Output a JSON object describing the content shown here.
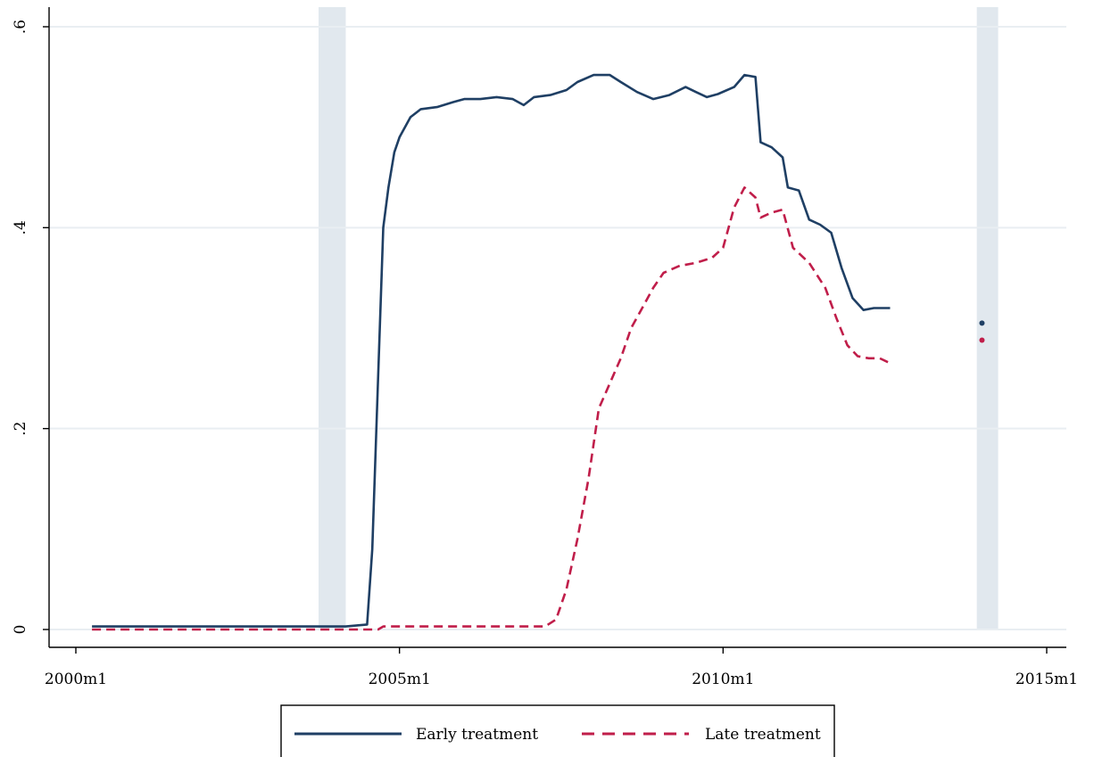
{
  "chart_data": {
    "type": "line",
    "title": "",
    "xlabel": "",
    "ylabel": "",
    "xlim": [
      2000.0,
      2015.0
    ],
    "ylim": [
      0,
      0.6
    ],
    "x_ticks": [
      {
        "value": 2000.0,
        "label": "2000m1"
      },
      {
        "value": 2005.0,
        "label": "2005m1"
      },
      {
        "value": 2010.0,
        "label": "2010m1"
      },
      {
        "value": 2015.0,
        "label": "2015m1"
      }
    ],
    "y_ticks": [
      {
        "value": 0,
        "label": "0"
      },
      {
        "value": 0.2,
        "label": ".2"
      },
      {
        "value": 0.4,
        "label": ".4"
      },
      {
        "value": 0.6,
        "label": ".6"
      }
    ],
    "grid": "horizontal",
    "legend_position": "bottom",
    "shaded_periods": [
      [
        2003.75,
        2004.17
      ],
      [
        2013.92,
        2014.25
      ]
    ],
    "series": [
      {
        "name": "Early treatment",
        "color": "#1f3f64",
        "style": "solid",
        "points": [
          [
            2000.25,
            0.003
          ],
          [
            2003.75,
            0.003
          ],
          [
            2004.17,
            0.003
          ],
          [
            2004.5,
            0.005
          ],
          [
            2004.58,
            0.08
          ],
          [
            2004.67,
            0.25
          ],
          [
            2004.75,
            0.4
          ],
          [
            2004.83,
            0.44
          ],
          [
            2004.92,
            0.475
          ],
          [
            2005.0,
            0.49
          ],
          [
            2005.17,
            0.51
          ],
          [
            2005.33,
            0.518
          ],
          [
            2005.58,
            0.52
          ],
          [
            2005.83,
            0.525
          ],
          [
            2006.0,
            0.528
          ],
          [
            2006.25,
            0.528
          ],
          [
            2006.5,
            0.53
          ],
          [
            2006.75,
            0.528
          ],
          [
            2006.92,
            0.522
          ],
          [
            2007.08,
            0.53
          ],
          [
            2007.33,
            0.532
          ],
          [
            2007.58,
            0.537
          ],
          [
            2007.75,
            0.545
          ],
          [
            2008.0,
            0.552
          ],
          [
            2008.25,
            0.552
          ],
          [
            2008.42,
            0.545
          ],
          [
            2008.67,
            0.535
          ],
          [
            2008.92,
            0.528
          ],
          [
            2009.17,
            0.532
          ],
          [
            2009.42,
            0.54
          ],
          [
            2009.58,
            0.535
          ],
          [
            2009.75,
            0.53
          ],
          [
            2009.92,
            0.533
          ],
          [
            2010.17,
            0.54
          ],
          [
            2010.33,
            0.552
          ],
          [
            2010.5,
            0.55
          ],
          [
            2010.58,
            0.485
          ],
          [
            2010.75,
            0.48
          ],
          [
            2010.92,
            0.47
          ],
          [
            2011.0,
            0.44
          ],
          [
            2011.17,
            0.437
          ],
          [
            2011.33,
            0.408
          ],
          [
            2011.5,
            0.403
          ],
          [
            2011.67,
            0.395
          ],
          [
            2011.83,
            0.36
          ],
          [
            2012.0,
            0.33
          ],
          [
            2012.17,
            0.318
          ],
          [
            2012.33,
            0.32
          ],
          [
            2012.58,
            0.32
          ]
        ],
        "point_marker": [
          2014.0,
          0.305
        ]
      },
      {
        "name": "Late treatment",
        "color": "#c01e4a",
        "style": "dashed",
        "points": [
          [
            2000.25,
            0.0
          ],
          [
            2004.17,
            0.0
          ],
          [
            2004.67,
            0.0
          ],
          [
            2004.75,
            0.003
          ],
          [
            2007.25,
            0.003
          ],
          [
            2007.42,
            0.01
          ],
          [
            2007.58,
            0.04
          ],
          [
            2007.75,
            0.09
          ],
          [
            2007.92,
            0.15
          ],
          [
            2008.08,
            0.22
          ],
          [
            2008.25,
            0.245
          ],
          [
            2008.42,
            0.27
          ],
          [
            2008.58,
            0.3
          ],
          [
            2008.75,
            0.32
          ],
          [
            2008.92,
            0.34
          ],
          [
            2009.08,
            0.355
          ],
          [
            2009.33,
            0.362
          ],
          [
            2009.58,
            0.365
          ],
          [
            2009.83,
            0.37
          ],
          [
            2010.0,
            0.38
          ],
          [
            2010.17,
            0.42
          ],
          [
            2010.33,
            0.44
          ],
          [
            2010.5,
            0.43
          ],
          [
            2010.58,
            0.41
          ],
          [
            2010.75,
            0.415
          ],
          [
            2010.92,
            0.418
          ],
          [
            2011.08,
            0.38
          ],
          [
            2011.33,
            0.365
          ],
          [
            2011.58,
            0.34
          ],
          [
            2011.75,
            0.31
          ],
          [
            2011.92,
            0.283
          ],
          [
            2012.08,
            0.272
          ],
          [
            2012.25,
            0.27
          ],
          [
            2012.42,
            0.27
          ],
          [
            2012.58,
            0.265
          ]
        ],
        "point_marker": [
          2014.0,
          0.288
        ]
      }
    ]
  }
}
